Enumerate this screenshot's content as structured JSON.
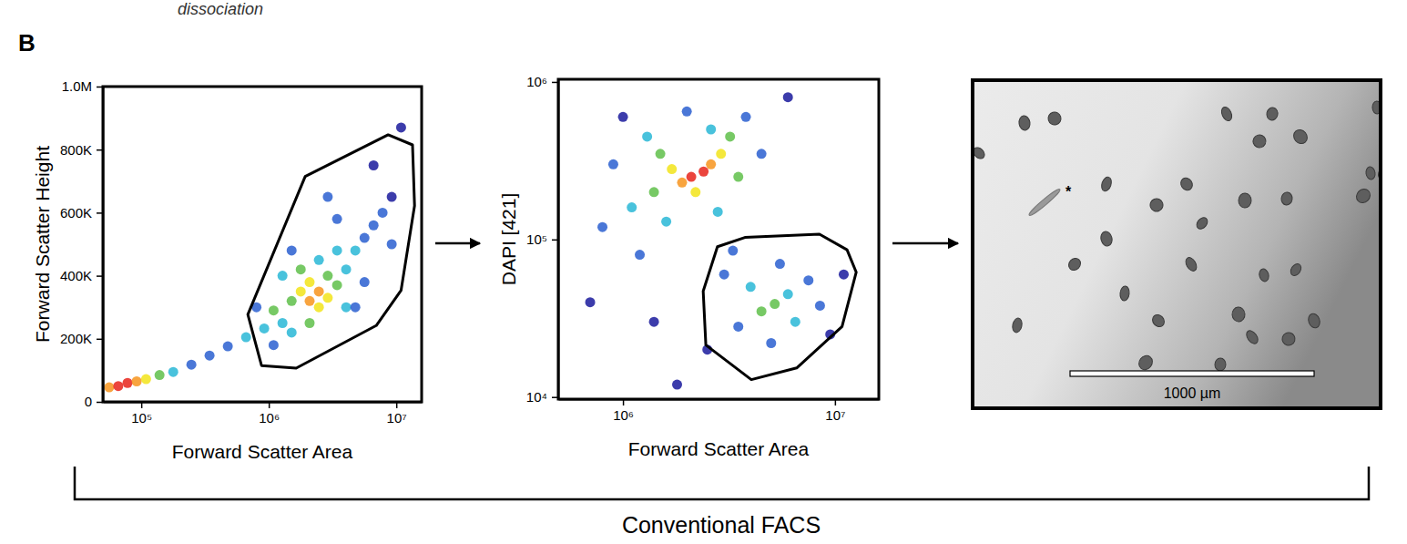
{
  "panel_label": "B",
  "header_fragment": "dissociation",
  "bracket_label": "Conventional FACS",
  "image": {
    "scale_bar_label": "1000 µm",
    "annotation": "*"
  },
  "chart_data": [
    {
      "type": "scatter",
      "x_label": "Forward Scatter Area",
      "y_label": "Forward Scatter Height",
      "log": "x",
      "xlim": [
        50000,
        15800000
      ],
      "ylim": [
        0,
        1000000
      ],
      "xticks": [
        {
          "value": 100000,
          "label": "10⁵"
        },
        {
          "value": 1000000,
          "label": "10⁶"
        },
        {
          "value": 10000000,
          "label": "10⁷"
        }
      ],
      "yticks": [
        0,
        {
          "value": 200000,
          "label": "200K"
        },
        {
          "value": 400000,
          "label": "400K"
        },
        {
          "value": 600000,
          "label": "600K"
        },
        {
          "value": 800000,
          "label": "800K"
        },
        {
          "value": 1000000,
          "label": "1.0M"
        }
      ],
      "x": [
        56000,
        66000,
        78000,
        92000,
        109000,
        139000,
        178000,
        247000,
        343000,
        477000,
        663000,
        920000,
        1090000,
        1280000,
        1510000,
        1780000,
        2090000,
        2090000,
        2470000,
        2470000,
        2900000,
        2900000,
        3430000,
        1780000,
        2470000,
        3430000,
        4040000,
        4770000,
        5630000,
        6630000,
        7800000,
        9200000,
        4040000,
        1510000,
        1280000,
        3430000,
        5630000,
        2090000,
        1090000,
        9200000,
        2900000,
        1510000,
        6630000,
        10900000,
        4770000,
        800000
      ],
      "values": [
        46000,
        50000,
        60000,
        65000,
        72000,
        85000,
        95000,
        118000,
        147000,
        176000,
        205000,
        233000,
        290000,
        250000,
        320000,
        350000,
        320000,
        380000,
        350000,
        300000,
        330000,
        400000,
        370000,
        420000,
        450000,
        480000,
        420000,
        480000,
        520000,
        560000,
        600000,
        650000,
        300000,
        220000,
        400000,
        580000,
        380000,
        250000,
        180000,
        500000,
        650000,
        480000,
        750000,
        870000,
        300000,
        300000
      ],
      "colors": [
        "#f7941d",
        "#e8251b",
        "#e8251b",
        "#f7941d",
        "#f2e41a",
        "#5fc04a",
        "#29b7d6",
        "#2a5fd0",
        "#2a5fd0",
        "#2a5fd0",
        "#29b7d6",
        "#29b7d6",
        "#5fc04a",
        "#29b7d6",
        "#5fc04a",
        "#f2e41a",
        "#f7941d",
        "#f2e41a",
        "#f7941d",
        "#f2e41a",
        "#f2e41a",
        "#5fc04a",
        "#5fc04a",
        "#5fc04a",
        "#29b7d6",
        "#29b7d6",
        "#29b7d6",
        "#29b7d6",
        "#2a5fd0",
        "#2a5fd0",
        "#2a5fd0",
        "#1a1a9c",
        "#29b7d6",
        "#29b7d6",
        "#29b7d6",
        "#2a5fd0",
        "#2a5fd0",
        "#5fc04a",
        "#2a5fd0",
        "#2a5fd0",
        "#2a5fd0",
        "#2a5fd0",
        "#1a1a9c",
        "#1a1a9c",
        "#2a5fd0",
        "#2a5fd0"
      ],
      "gate": {
        "x": [
          1930000,
          8630000,
          13400000,
          13900000,
          10900000,
          6960000,
          1640000,
          877000,
          685000
        ],
        "y": [
          715000,
          847000,
          815000,
          622000,
          354000,
          242000,
          107000,
          115000,
          277000
        ]
      }
    },
    {
      "type": "scatter",
      "x_label": "Forward Scatter Area",
      "y_label": "DAPI [421]",
      "log": true,
      "xlim": [
        495000,
        16100000
      ],
      "ylim": [
        9700,
        1040000
      ],
      "xticks": [
        {
          "value": 1000000,
          "label": "10⁶"
        },
        {
          "value": 10000000,
          "label": "10⁷"
        }
      ],
      "yticks": [
        {
          "value": 10000,
          "label": "10⁴"
        },
        {
          "value": 100000,
          "label": "10⁵"
        },
        {
          "value": 1000000,
          "label": "10⁶"
        }
      ],
      "x": [
        2100000,
        2400000,
        1900000,
        2600000,
        1700000,
        2200000,
        2900000,
        1500000,
        1400000,
        3200000,
        2600000,
        1300000,
        1100000,
        3500000,
        900000,
        800000,
        3800000,
        2000000,
        1600000,
        4500000,
        1200000,
        700000,
        6000000,
        1000000,
        2800000,
        5200000,
        4500000,
        6000000,
        4000000,
        6500000,
        3500000,
        7500000,
        5000000,
        8500000,
        3000000,
        5500000,
        9500000,
        2500000,
        1800000,
        11000000,
        3300000,
        1400000
      ],
      "values": [
        250000,
        270000,
        230000,
        300000,
        280000,
        200000,
        350000,
        350000,
        200000,
        450000,
        500000,
        450000,
        160000,
        250000,
        300000,
        120000,
        600000,
        650000,
        130000,
        350000,
        80000,
        40000,
        800000,
        600000,
        150000,
        39000,
        35000,
        45000,
        50000,
        30000,
        28000,
        55000,
        22000,
        38000,
        60000,
        70000,
        25000,
        20000,
        12000,
        60000,
        85000,
        30000
      ],
      "colors": [
        "#e8251b",
        "#e8251b",
        "#f7941d",
        "#f7941d",
        "#f2e41a",
        "#f2e41a",
        "#f2e41a",
        "#5fc04a",
        "#5fc04a",
        "#5fc04a",
        "#29b7d6",
        "#29b7d6",
        "#29b7d6",
        "#5fc04a",
        "#2a5fd0",
        "#2a5fd0",
        "#2a5fd0",
        "#2a5fd0",
        "#29b7d6",
        "#2a5fd0",
        "#2a5fd0",
        "#1a1a9c",
        "#1a1a9c",
        "#1a1a9c",
        "#29b7d6",
        "#5fc04a",
        "#5fc04a",
        "#29b7d6",
        "#29b7d6",
        "#29b7d6",
        "#2a5fd0",
        "#2a5fd0",
        "#2a5fd0",
        "#2a5fd0",
        "#2a5fd0",
        "#2a5fd0",
        "#1a1a9c",
        "#1a1a9c",
        "#1a1a9c",
        "#1a1a9c",
        "#2a5fd0",
        "#1a1a9c"
      ],
      "gate": {
        "x": [
          2790000,
          3760000,
          8450000,
          11400000,
          12600000,
          10800000,
          6600000,
          4030000,
          2460000,
          2390000
        ],
        "y": [
          90000,
          103000,
          108000,
          86000,
          62000,
          28000,
          15300,
          12900,
          21400,
          47000
        ]
      }
    }
  ]
}
